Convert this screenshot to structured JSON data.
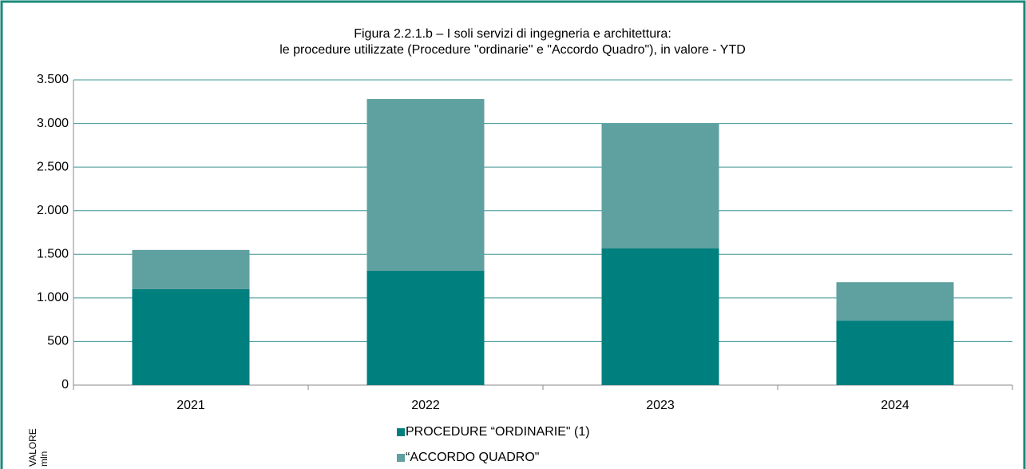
{
  "chart_data": {
    "type": "stacked_bar",
    "title": [
      "Figura 2.2.1.b – I soli servizi di ingegneria e architettura:",
      "le procedure utilizzate (Procedure \"ordinarie\" e \"Accordo Quadro\"),  in valore - YTD"
    ],
    "ylabel": [
      "VALORE",
      "mln"
    ],
    "categories": [
      "2021",
      "2022",
      "2023",
      "2024"
    ],
    "series": [
      {
        "name": "PROCEDURE “ORDINARIE\" (1)",
        "color": "#007f7f",
        "values": [
          1100,
          1310,
          1570,
          740
        ]
      },
      {
        "name": "“ACCORDO QUADRO\"",
        "color": "#5fa0a0",
        "values": [
          450,
          1970,
          1430,
          440
        ]
      }
    ],
    "ylim": [
      0,
      3500
    ],
    "yticks": [
      0,
      500,
      {
        "value": 1000,
        "label": "1.000"
      },
      {
        "value": 1500,
        "label": "1.500"
      },
      {
        "value": 2000,
        "label": "2.000"
      },
      {
        "value": 2500,
        "label": "2.500"
      },
      {
        "value": 3000,
        "label": "3.000"
      },
      {
        "value": 3500,
        "label": "3.500"
      }
    ],
    "grid": true,
    "legend": "bottom"
  }
}
